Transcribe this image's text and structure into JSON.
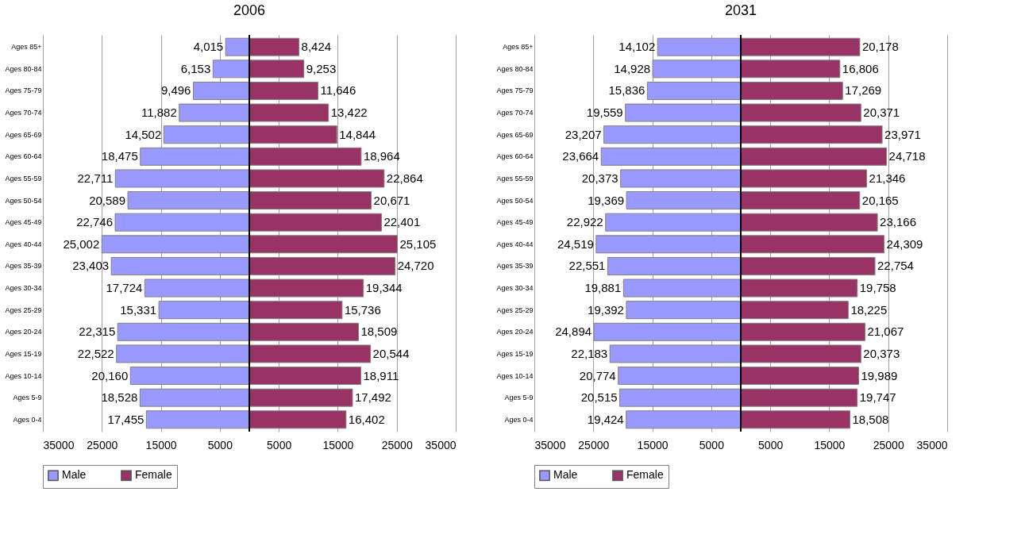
{
  "chart_data": [
    {
      "type": "bar",
      "orientation": "horizontal",
      "title": "2006",
      "categories": [
        "Ages 85+",
        "Ages 80-84",
        "Ages 75-79",
        "Ages 70-74",
        "Ages 65-69",
        "Ages 60-64",
        "Ages 55-59",
        "Ages 50-54",
        "Ages 45-49",
        "Ages 40-44",
        "Ages 35-39",
        "Ages 30-34",
        "Ages 25-29",
        "Ages 20-24",
        "Ages 15-19",
        "Ages 10-14",
        "Ages 5-9",
        "Ages 0-4"
      ],
      "series": [
        {
          "name": "Male",
          "color": "#9999ff",
          "base": [
            -4015,
            -6153,
            -9496,
            -11882,
            -14502,
            -18475,
            -22711,
            -20589,
            -22746,
            -25002,
            -23403,
            -17724,
            -15331,
            -22315,
            -22522,
            -20160,
            -18528,
            -17455
          ],
          "values": [
            4015,
            6153,
            9496,
            11882,
            14502,
            18475,
            22711,
            20589,
            22746,
            25002,
            23403,
            17724,
            15331,
            22315,
            22522,
            20160,
            18528,
            17455
          ],
          "value_labels": [
            "4,015",
            "6,153",
            "9,496",
            "11,882",
            "14,502",
            "18,475",
            "22,711",
            "20,589",
            "22,746",
            "25,002",
            "23,403",
            "17,724",
            "15,331",
            "22,315",
            "22,522",
            "20,160",
            "18,528",
            "17,455"
          ]
        },
        {
          "name": "Female",
          "color": "#993366",
          "values": [
            8424,
            9253,
            11646,
            13422,
            14844,
            18964,
            22864,
            20671,
            22401,
            25105,
            24720,
            19344,
            15736,
            18509,
            20544,
            18911,
            17492,
            16402
          ],
          "value_labels": [
            "8,424",
            "9,253",
            "11,646",
            "13,422",
            "14,844",
            "18,964",
            "22,864",
            "20,671",
            "22,401",
            "25,105",
            "24,720",
            "19,344",
            "15,736",
            "18,509",
            "20,544",
            "18,911",
            "17,492",
            "16,402"
          ]
        }
      ],
      "xlim": [
        -35000,
        35000
      ],
      "xticks": [
        {
          "value": -35000,
          "label": "35000"
        },
        {
          "value": -25000,
          "label": "25000"
        },
        {
          "value": -15000,
          "label": "15000"
        },
        {
          "value": -5000,
          "label": "5000"
        },
        5000,
        15000,
        25000,
        35000
      ],
      "grid": "x",
      "legend": "bottom"
    },
    {
      "type": "bar",
      "orientation": "horizontal",
      "title": "2031",
      "categories": [
        "Ages 85+",
        "Ages 80-84",
        "Ages 75-79",
        "Ages 70-74",
        "Ages 65-69",
        "Ages 60-64",
        "Ages 55-59",
        "Ages 50-54",
        "Ages 45-49",
        "Ages 40-44",
        "Ages 35-39",
        "Ages 30-34",
        "Ages 25-29",
        "Ages 20-24",
        "Ages 15-19",
        "Ages 10-14",
        "Ages 5-9",
        "Ages 0-4"
      ],
      "series": [
        {
          "name": "Male",
          "color": "#9999ff",
          "base": [
            -14102,
            -14928,
            -15836,
            -19559,
            -23207,
            -23664,
            -20373,
            -19369,
            -22922,
            -24519,
            -22551,
            -19881,
            -19392,
            -24894,
            -22183,
            -20774,
            -20515,
            -19424
          ],
          "values": [
            14102,
            14928,
            15836,
            19559,
            23207,
            23664,
            20373,
            19369,
            22922,
            24519,
            22551,
            19881,
            19392,
            24894,
            22183,
            20774,
            20515,
            19424
          ],
          "value_labels": [
            "14,102",
            "14,928",
            "15,836",
            "19,559",
            "23,207",
            "23,664",
            "20,373",
            "19,369",
            "22,922",
            "24,519",
            "22,551",
            "19,881",
            "19,392",
            "24,894",
            "22,183",
            "20,774",
            "20,515",
            "19,424"
          ]
        },
        {
          "name": "Female",
          "color": "#993366",
          "values": [
            20178,
            16806,
            17269,
            20371,
            23971,
            24718,
            21346,
            20165,
            23166,
            24309,
            22754,
            19758,
            18225,
            21067,
            20373,
            19989,
            19747,
            18508
          ],
          "value_labels": [
            "20,178",
            "16,806",
            "17,269",
            "20,371",
            "23,971",
            "24,718",
            "21,346",
            "20,165",
            "23,166",
            "24,309",
            "22,754",
            "19,758",
            "18,225",
            "21,067",
            "20,373",
            "19,989",
            "19,747",
            "18,508"
          ]
        }
      ],
      "xlim": [
        -35000,
        35000
      ],
      "xticks": [
        {
          "value": -35000,
          "label": "35000"
        },
        {
          "value": -25000,
          "label": "25000"
        },
        {
          "value": -15000,
          "label": "15000"
        },
        {
          "value": -5000,
          "label": "5000"
        },
        5000,
        15000,
        25000,
        35000
      ],
      "grid": "x",
      "legend": "bottom"
    }
  ]
}
